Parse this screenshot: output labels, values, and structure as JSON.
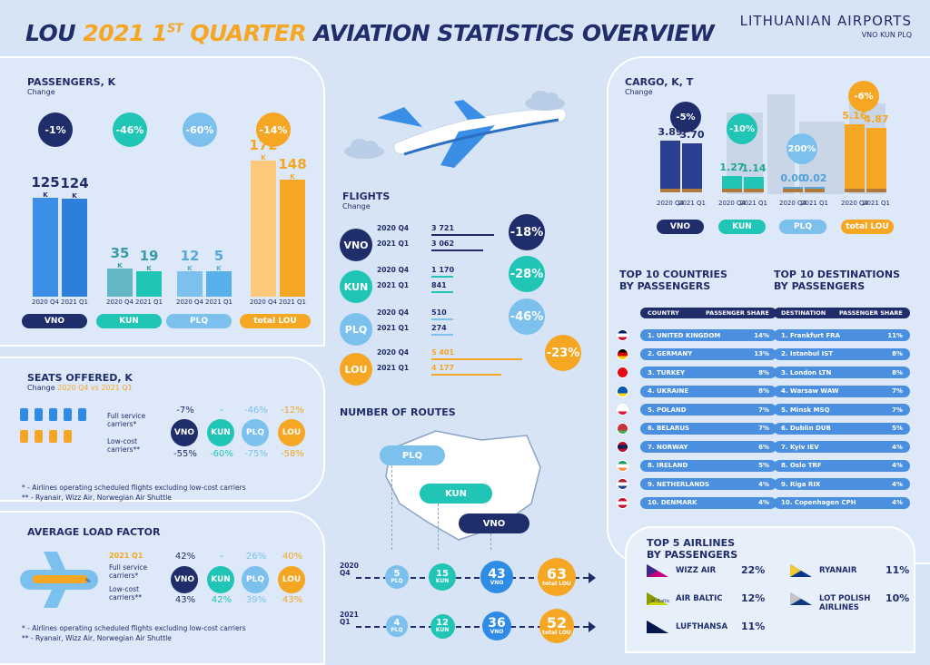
{
  "header": {
    "p1": "LOU ",
    "p2": "2021 1",
    "sup": "ST",
    "p3": " QUARTER",
    "p4": " AVIATION STATISTICS OVERVIEW"
  },
  "logo": {
    "name": "LITHUANIAN AIRPORTS",
    "codes": "VNO KUN PLQ"
  },
  "colors": {
    "vno": "#2e8be6",
    "kun": "#20c5b5",
    "plq": "#7cc0ee",
    "lou": "#f5a623",
    "navy": "#1f2d6b"
  },
  "passengers": {
    "title": "PASSENGERS, K",
    "sub": "Change"
  },
  "cargo": {
    "title": "CARGO, K, T",
    "sub": "Change"
  },
  "flights": {
    "title": "FLIGHTS",
    "sub": "Change"
  },
  "routes": {
    "title": "NUMBER OF ROUTES"
  },
  "seats": {
    "title": "SEATS OFFERED, K",
    "sub_prefix": "Change ",
    "sub_hl": "2020 Q4 vs 2021 Q1",
    "full": "Full service carriers*",
    "low": "Low-cost carriers**",
    "full_vals": [
      "-7%",
      "-",
      "-46%",
      "-12%"
    ],
    "low_vals": [
      "-55%",
      "-60%",
      "-75%",
      "-58%"
    ],
    "note1": "* - Airlines operating scheduled flights excluding low-cost carriers",
    "note2": "** - Ryanair, Wizz Air, Norwegian Air Shuttle"
  },
  "load": {
    "title": "AVERAGE LOAD FACTOR",
    "period": "2021 Q1",
    "full": "Full service carriers*",
    "low": "Low-cost carriers**",
    "full_vals": [
      "42%",
      "-",
      "26%",
      "40%"
    ],
    "low_vals": [
      "43%",
      "42%",
      "39%",
      "43%"
    ],
    "note1": "* - Airlines operating scheduled flights excluding low-cost carriers",
    "note2": "** - Ryanair, Wizz Air, Norwegian Air Shuttle"
  },
  "countries": {
    "title1": "TOP 10 COUNTRIES",
    "title2": "BY PASSENGERS",
    "col1": "COUNTRY",
    "col2": "PASSENGER SHARE",
    "rows": [
      [
        "1. UNITED KINGDOM",
        "14%"
      ],
      [
        "2. GERMANY",
        "13%"
      ],
      [
        "3. TURKEY",
        "8%"
      ],
      [
        "4. UKRAINE",
        "8%"
      ],
      [
        "5. POLAND",
        "7%"
      ],
      [
        "6. BELARUS",
        "7%"
      ],
      [
        "7. NORWAY",
        "6%"
      ],
      [
        "8. IRELAND",
        "5%"
      ],
      [
        "9. NETHERLANDS",
        "4%"
      ],
      [
        "10. DENMARK",
        "4%"
      ]
    ]
  },
  "destinations": {
    "title1": "TOP 10 DESTINATIONS",
    "title2": "BY PASSENGERS",
    "col1": "DESTINATION",
    "col2": "PASSENGER SHARE",
    "rows": [
      [
        "1. Frankfurt FRA",
        "11%"
      ],
      [
        "2. Istanbul IST",
        "8%"
      ],
      [
        "3. London LTN",
        "8%"
      ],
      [
        "4. Warsaw WAW",
        "7%"
      ],
      [
        "5. Minsk MSQ",
        "7%"
      ],
      [
        "6. Dublin DUB",
        "5%"
      ],
      [
        "7. Kyiv IEV",
        "4%"
      ],
      [
        "8. Oslo TRF",
        "4%"
      ],
      [
        "9. Riga RIX",
        "4%"
      ],
      [
        "10. Copenhagen CPH",
        "4%"
      ]
    ]
  },
  "airlines": {
    "title1": "TOP 5 AIRLINES",
    "title2": "BY PASSENGERS",
    "items": [
      [
        "WIZZ AIR",
        "22%"
      ],
      [
        "AIR BALTIC",
        "12%"
      ],
      [
        "LUFTHANSA",
        "11%"
      ],
      [
        "RYANAIR",
        "11%"
      ],
      [
        "LOT POLISH AIRLINES",
        "10%"
      ]
    ],
    "logo_text": "airBaltic"
  },
  "routes_map": {
    "plq": "PLQ",
    "kun": "KUN",
    "vno": "VNO"
  },
  "chart_data": [
    {
      "type": "bar",
      "name_id": "passengers",
      "unit": "K",
      "ticks": [
        "2020 Q4",
        "2021 Q1"
      ],
      "groups": [
        {
          "label": "VNO",
          "change": "-1%",
          "values": [
            125,
            124
          ]
        },
        {
          "label": "KUN",
          "change": "-46%",
          "values": [
            35,
            19
          ]
        },
        {
          "label": "PLQ",
          "change": "-60%",
          "values": [
            12,
            5
          ]
        },
        {
          "label": "total LOU",
          "change": "-14%",
          "values": [
            172,
            148
          ]
        }
      ]
    },
    {
      "type": "bar",
      "name_id": "cargo",
      "ticks": [
        "2020 Q4",
        "2021 Q1"
      ],
      "groups": [
        {
          "label": "VNO",
          "change": "-5%",
          "values": [
            3.89,
            3.7
          ]
        },
        {
          "label": "KUN",
          "change": "-10%",
          "values": [
            1.27,
            1.14
          ]
        },
        {
          "label": "PLQ",
          "change": "200%",
          "values": [
            0.0,
            0.02
          ]
        },
        {
          "label": "total LOU",
          "change": "-6%",
          "values": [
            5.16,
            4.87
          ]
        }
      ]
    },
    {
      "type": "line",
      "name_id": "flights",
      "ticks": [
        "2020 Q4",
        "2021 Q1"
      ],
      "groups": [
        {
          "label": "VNO",
          "change": "-18%",
          "values": [
            "3 721",
            "3 062"
          ]
        },
        {
          "label": "KUN",
          "change": "-28%",
          "values": [
            "1 170",
            "841"
          ]
        },
        {
          "label": "PLQ",
          "change": "-46%",
          "values": [
            "510",
            "274"
          ]
        },
        {
          "label": "LOU",
          "change": "-23%",
          "values": [
            "5 401",
            "4 177"
          ]
        }
      ]
    },
    {
      "type": "table",
      "name_id": "routes",
      "rows": [
        {
          "period": "2020 Q4",
          "values": [
            [
              "5",
              "PLQ"
            ],
            [
              "15",
              "KUN"
            ],
            [
              "43",
              "VNO"
            ],
            [
              "63",
              "total LOU"
            ]
          ]
        },
        {
          "period": "2021 Q1",
          "values": [
            [
              "4",
              "PLQ"
            ],
            [
              "12",
              "KUN"
            ],
            [
              "36",
              "VNO"
            ],
            [
              "52",
              "total LOU"
            ]
          ]
        }
      ]
    }
  ]
}
